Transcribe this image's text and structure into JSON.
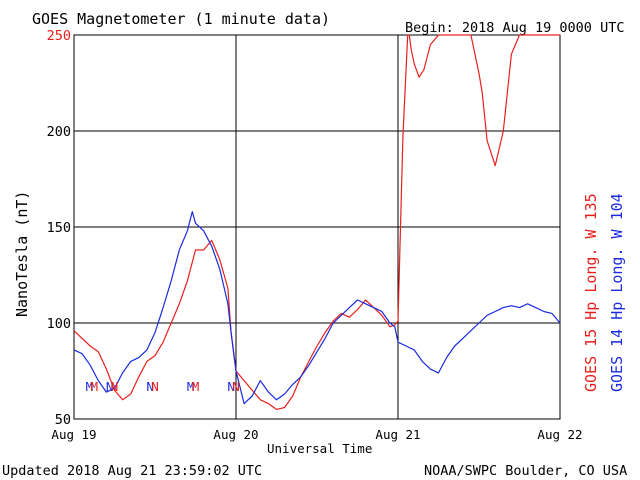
{
  "chart_data": {
    "type": "line",
    "title": "GOES Magnetometer (1 minute data)",
    "begin_label": "Begin:  2018 Aug 19 0000 UTC",
    "ylabel": "NanoTesla (nT)",
    "xlabel": "Universal Time",
    "ylim": [
      50,
      250
    ],
    "xlim_days": [
      0,
      3
    ],
    "y_ticks": [
      50,
      100,
      150,
      200,
      250
    ],
    "x_ticks": [
      {
        "x": 0,
        "label": "Aug 19"
      },
      {
        "x": 1,
        "label": "Aug 20"
      },
      {
        "x": 2,
        "label": "Aug 21"
      },
      {
        "x": 3,
        "label": "Aug 22"
      }
    ],
    "grid": true,
    "colors": {
      "goes15": "#e8201c",
      "goes14": "#1a2be0",
      "axis": "#000000"
    },
    "series": [
      {
        "name": "GOES 15",
        "legend_label": "GOES 15 Hp  Long. W 135",
        "color": "#e8201c",
        "x": [
          0.0,
          0.05,
          0.1,
          0.15,
          0.2,
          0.25,
          0.3,
          0.35,
          0.4,
          0.45,
          0.5,
          0.55,
          0.6,
          0.65,
          0.7,
          0.75,
          0.8,
          0.85,
          0.9,
          0.95,
          0.97,
          1.0,
          1.05,
          1.1,
          1.15,
          1.2,
          1.25,
          1.3,
          1.35,
          1.4,
          1.45,
          1.5,
          1.55,
          1.6,
          1.65,
          1.7,
          1.75,
          1.8,
          1.85,
          1.9,
          1.95,
          1.98,
          2.0,
          2.03,
          2.06,
          2.07,
          2.08,
          2.1,
          2.13,
          2.16,
          2.2,
          2.25,
          2.3,
          2.33,
          2.36,
          2.4,
          2.45,
          2.5,
          2.52,
          2.55,
          2.6,
          2.65,
          2.7,
          2.75,
          2.8,
          2.85,
          2.9,
          2.95,
          3.0
        ],
        "y": [
          96,
          92,
          88,
          85,
          76,
          65,
          60,
          63,
          72,
          80,
          83,
          90,
          100,
          110,
          122,
          138,
          138,
          143,
          133,
          118,
          95,
          75,
          70,
          65,
          60,
          58,
          55,
          56,
          62,
          72,
          80,
          88,
          95,
          101,
          105,
          103,
          107,
          112,
          108,
          104,
          98,
          99,
          101,
          197,
          250,
          250,
          243,
          235,
          228,
          232,
          245,
          250,
          250,
          250,
          250,
          250,
          250,
          230,
          220,
          195,
          182,
          200,
          240,
          250,
          250,
          250,
          250,
          250,
          250
        ]
      },
      {
        "name": "GOES 14",
        "legend_label": "GOES 14 Hp  Long. W 104",
        "color": "#1a2be0",
        "x": [
          0.0,
          0.05,
          0.1,
          0.15,
          0.2,
          0.25,
          0.3,
          0.35,
          0.4,
          0.45,
          0.5,
          0.55,
          0.6,
          0.65,
          0.7,
          0.73,
          0.75,
          0.8,
          0.85,
          0.9,
          0.95,
          0.97,
          1.0,
          1.05,
          1.1,
          1.15,
          1.2,
          1.25,
          1.3,
          1.35,
          1.4,
          1.45,
          1.5,
          1.55,
          1.6,
          1.65,
          1.7,
          1.75,
          1.8,
          1.85,
          1.9,
          1.95,
          1.98,
          2.0,
          2.05,
          2.1,
          2.15,
          2.2,
          2.25,
          2.3,
          2.35,
          2.4,
          2.45,
          2.5,
          2.55,
          2.6,
          2.65,
          2.7,
          2.75,
          2.8,
          2.85,
          2.9,
          2.95,
          3.0
        ],
        "y": [
          86,
          84,
          78,
          70,
          64,
          66,
          74,
          80,
          82,
          86,
          95,
          108,
          122,
          138,
          148,
          158,
          152,
          148,
          140,
          128,
          110,
          95,
          75,
          58,
          62,
          70,
          64,
          60,
          63,
          68,
          72,
          78,
          85,
          92,
          100,
          104,
          108,
          112,
          110,
          108,
          106,
          100,
          98,
          90,
          88,
          86,
          80,
          76,
          74,
          82,
          88,
          92,
          96,
          100,
          104,
          106,
          108,
          109,
          108,
          110,
          108,
          106,
          105,
          100
        ]
      }
    ],
    "annotations": [
      {
        "x": 0.38,
        "text": "M",
        "color": "#1a2be0"
      },
      {
        "x": 0.5,
        "text": "M",
        "color": "#e8201c"
      },
      {
        "x": 0.88,
        "text": "N",
        "color": "#1a2be0"
      },
      {
        "x": 1.0,
        "text": "N",
        "color": "#e8201c"
      },
      {
        "x": 1.88,
        "text": "N",
        "color": "#1a2be0"
      },
      {
        "x": 2.0,
        "text": "N",
        "color": "#e8201c"
      },
      {
        "x": 2.88,
        "text": "M",
        "color": "#1a2be0"
      },
      {
        "x": 3.0,
        "text": "M",
        "color": "#e8201c"
      },
      {
        "x": 3.88,
        "text": "N",
        "color": "#1a2be0"
      },
      {
        "x": 4.0,
        "text": "N",
        "color": "#e8201c"
      }
    ]
  },
  "footer": {
    "updated": "Updated 2018 Aug 21 23:59:02 UTC",
    "source": "NOAA/SWPC Boulder, CO USA"
  }
}
